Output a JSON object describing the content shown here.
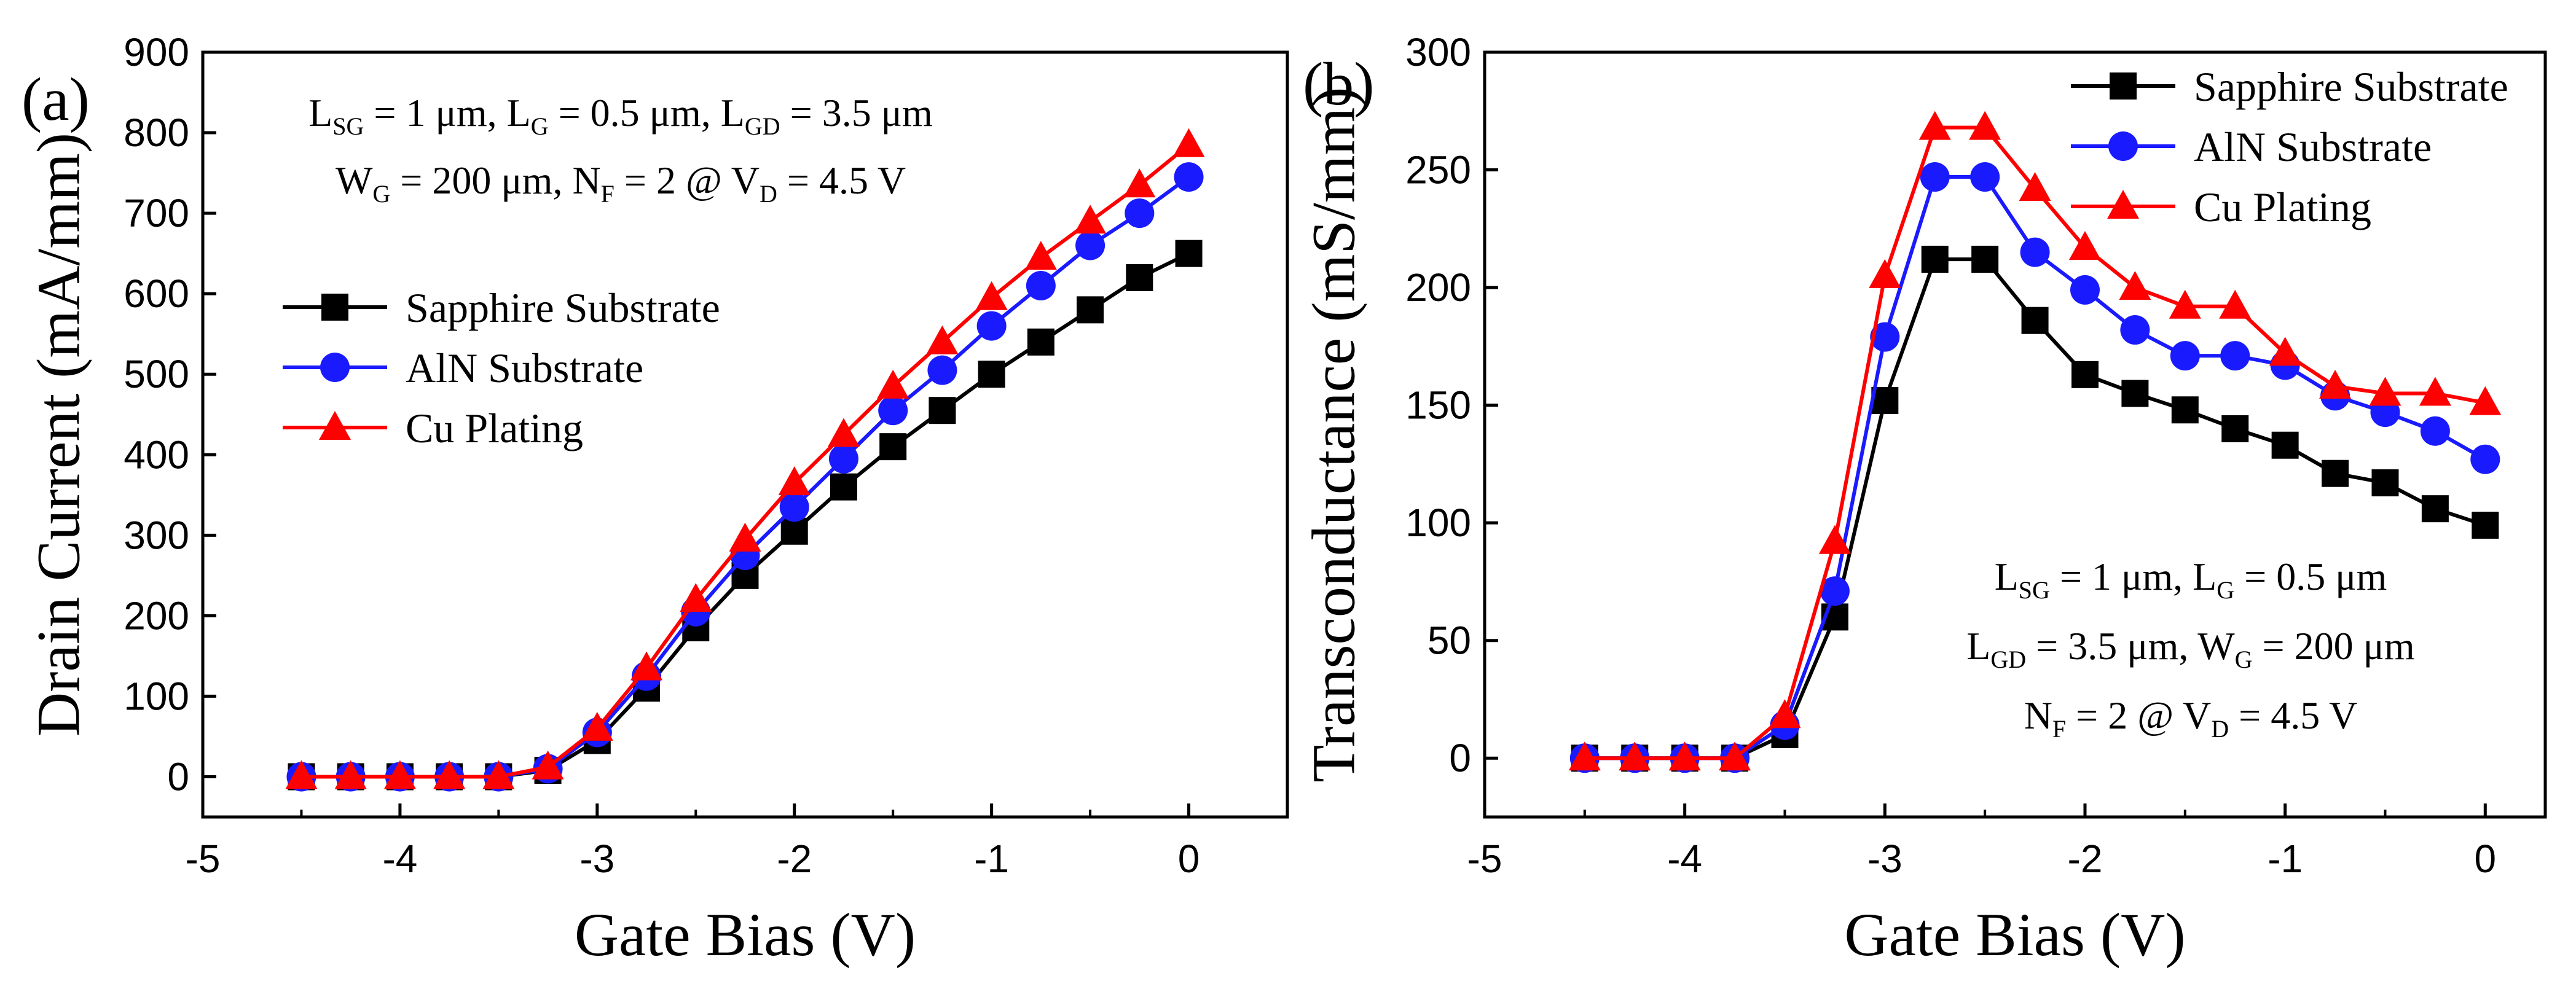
{
  "chart_data": [
    {
      "panel": "(a)",
      "type": "line",
      "xlabel": "Gate Bias (V)",
      "ylabel": "Drain Current (mA/mm)",
      "xlim": [
        -5,
        0.5
      ],
      "ylim": [
        -50,
        900
      ],
      "xticks": [
        "-5",
        "-4",
        "-3",
        "-2",
        "-1",
        "0"
      ],
      "yticks": [
        "0",
        "100",
        "200",
        "300",
        "400",
        "500",
        "600",
        "700",
        "800",
        "900"
      ],
      "annotation": [
        {
          "parts": [
            {
              "t": "L"
            },
            {
              "s": "SG"
            },
            {
              "t": " = 1 μm, L"
            },
            {
              "s": "G"
            },
            {
              "t": " = 0.5 μm, L"
            },
            {
              "s": "GD"
            },
            {
              "t": " = 3.5 μm"
            }
          ]
        },
        {
          "parts": [
            {
              "t": "W"
            },
            {
              "s": "G"
            },
            {
              "t": " = 200 μm, N"
            },
            {
              "s": "F"
            },
            {
              "t": " = 2 @ V"
            },
            {
              "s": "D"
            },
            {
              "t": " = 4.5 V"
            }
          ]
        }
      ],
      "x": [
        -4.5,
        -4.25,
        -4.0,
        -3.75,
        -3.5,
        -3.25,
        -3.0,
        -2.75,
        -2.5,
        -2.25,
        -2.0,
        -1.75,
        -1.5,
        -1.25,
        -1.0,
        -0.75,
        -0.5,
        -0.25,
        0.0
      ],
      "series": [
        {
          "name": "Sapphire Substrate",
          "color": "#000000",
          "marker": "square",
          "values": [
            0,
            0,
            0,
            0,
            0,
            8,
            45,
            110,
            185,
            250,
            305,
            360,
            410,
            455,
            500,
            540,
            580,
            620,
            650
          ]
        },
        {
          "name": "AlN Substrate",
          "color": "#1a1aff",
          "marker": "circle",
          "values": [
            0,
            0,
            0,
            0,
            0,
            10,
            55,
            125,
            205,
            275,
            335,
            395,
            455,
            505,
            560,
            610,
            660,
            700,
            745
          ]
        },
        {
          "name": "Cu Plating",
          "color": "#ff0000",
          "marker": "triangle",
          "values": [
            0,
            0,
            0,
            0,
            0,
            12,
            60,
            135,
            220,
            295,
            365,
            425,
            485,
            540,
            595,
            645,
            690,
            735,
            785
          ]
        }
      ]
    },
    {
      "panel": "(b)",
      "type": "line",
      "xlabel": "Gate Bias (V)",
      "ylabel": "Transconductance (mS/mm)",
      "xlim": [
        -5,
        0.3
      ],
      "ylim": [
        -25,
        300
      ],
      "xticks": [
        "-5",
        "-4",
        "-3",
        "-2",
        "-1",
        "0"
      ],
      "yticks": [
        "0",
        "50",
        "100",
        "150",
        "200",
        "250",
        "300"
      ],
      "annotation": [
        {
          "parts": [
            {
              "t": "L"
            },
            {
              "s": "SG"
            },
            {
              "t": " = 1 μm, L"
            },
            {
              "s": "G"
            },
            {
              "t": " = 0.5 μm"
            }
          ]
        },
        {
          "parts": [
            {
              "t": "L"
            },
            {
              "s": "GD"
            },
            {
              "t": " = 3.5 μm, W"
            },
            {
              "s": "G"
            },
            {
              "t": " = 200 μm"
            }
          ]
        },
        {
          "parts": [
            {
              "t": "N"
            },
            {
              "s": "F"
            },
            {
              "t": " = 2 @ V"
            },
            {
              "s": "D"
            },
            {
              "t": " = 4.5 V"
            }
          ]
        }
      ],
      "x": [
        -4.5,
        -4.25,
        -4.0,
        -3.75,
        -3.5,
        -3.25,
        -3.0,
        -2.75,
        -2.5,
        -2.25,
        -2.0,
        -1.75,
        -1.5,
        -1.25,
        -1.0,
        -0.75,
        -0.5,
        -0.25,
        0.0
      ],
      "series": [
        {
          "name": "Sapphire Substrate",
          "color": "#000000",
          "marker": "square",
          "values": [
            0,
            0,
            0,
            0,
            10,
            60,
            152,
            212,
            212,
            186,
            163,
            155,
            148,
            140,
            133,
            121,
            117,
            106,
            99
          ]
        },
        {
          "name": "AlN Substrate",
          "color": "#1a1aff",
          "marker": "circle",
          "values": [
            0,
            0,
            0,
            0,
            14,
            71,
            179,
            247,
            247,
            215,
            199,
            182,
            171,
            171,
            167,
            154,
            147,
            139,
            127
          ]
        },
        {
          "name": "Cu Plating",
          "color": "#ff0000",
          "marker": "triangle",
          "values": [
            0,
            0,
            0,
            0,
            18,
            92,
            205,
            268,
            268,
            242,
            217,
            200,
            192,
            192,
            172,
            158,
            155,
            155,
            151
          ]
        }
      ]
    }
  ]
}
